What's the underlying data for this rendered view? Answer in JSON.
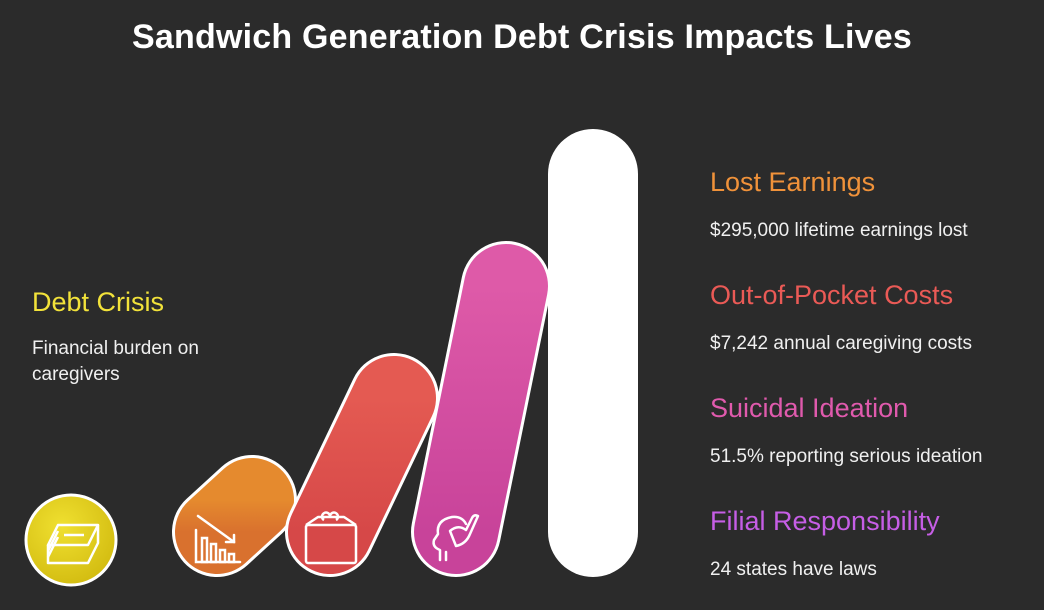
{
  "title": "Sandwich Generation Debt Crisis Impacts Lives",
  "left": {
    "heading": "Debt Crisis",
    "description": "Financial burden on caregivers",
    "color": "#f2e23a",
    "icon": "money-stack-icon"
  },
  "items": [
    {
      "heading": "Lost Earnings",
      "description": "$295,000 lifetime earnings lost",
      "color": "#f0923a",
      "icon": "declining-chart-icon"
    },
    {
      "heading": "Out-of-Pocket Costs",
      "description": "$7,242 annual caregiving costs",
      "color": "#ea5a56",
      "icon": "wallet-icon"
    },
    {
      "heading": "Suicidal Ideation",
      "description": "51.5% reporting serious ideation",
      "color": "#e05aad",
      "icon": "head-hand-icon"
    },
    {
      "heading": "Filial Responsibility",
      "description": "24 states have laws",
      "color": "#c65ee6",
      "icon": "law-scales-icon"
    }
  ]
}
